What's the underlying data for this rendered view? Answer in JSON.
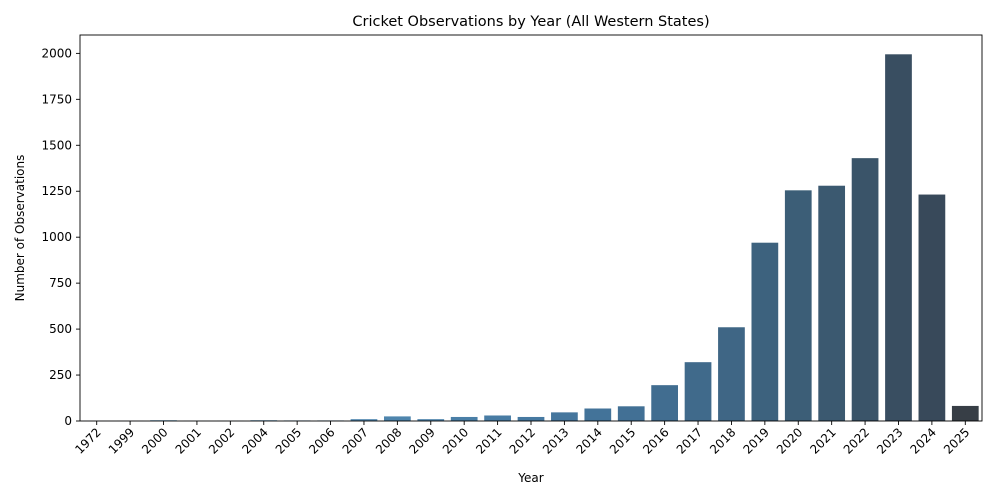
{
  "chart_data": {
    "type": "bar",
    "title": "Cricket Observations by Year (All Western States)",
    "xlabel": "Year",
    "ylabel": "Number of Observations",
    "categories": [
      "1972",
      "1999",
      "2000",
      "2001",
      "2002",
      "2004",
      "2005",
      "2006",
      "2007",
      "2008",
      "2009",
      "2010",
      "2011",
      "2012",
      "2013",
      "2014",
      "2015",
      "2016",
      "2017",
      "2018",
      "2019",
      "2020",
      "2021",
      "2022",
      "2023",
      "2024",
      "2025"
    ],
    "values": [
      1,
      1,
      4,
      1,
      1,
      4,
      3,
      3,
      10,
      25,
      10,
      22,
      30,
      22,
      47,
      68,
      80,
      195,
      320,
      510,
      970,
      1255,
      1280,
      1430,
      1995,
      1232,
      82
    ],
    "ylim": [
      0,
      2100
    ],
    "yticks": [
      0,
      250,
      500,
      750,
      1000,
      1250,
      1500,
      1750,
      2000
    ],
    "grid": false,
    "legend": "none",
    "colors": [
      "#60a0c8",
      "#5e9dc5",
      "#5c9ac2",
      "#5a97bf",
      "#5894bc",
      "#5691b9",
      "#548eb6",
      "#528bb3",
      "#5088b0",
      "#4e85ad",
      "#4c82aa",
      "#4a7fa7",
      "#487ca4",
      "#4679a1",
      "#45769d",
      "#437399",
      "#427095",
      "#416d90",
      "#406a8b",
      "#3f6685",
      "#3d627e",
      "#3c5e77",
      "#3b5970",
      "#3a5469",
      "#394e61",
      "#38495a",
      "#373e46"
    ]
  }
}
